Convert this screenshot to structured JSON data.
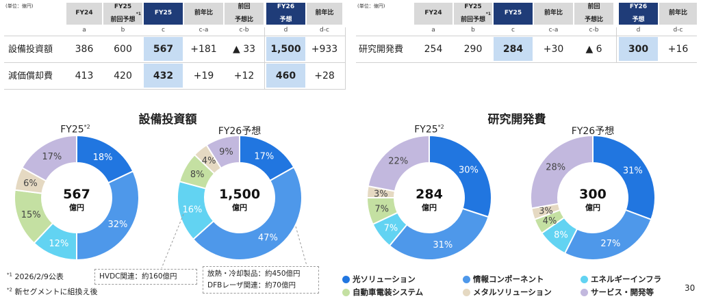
{
  "page_number": "30",
  "unit_label": "(単位：億円)",
  "table_capex": {
    "headers": [
      "FY24",
      "FY25\n前回予想",
      "FY25",
      "前年比",
      "前回\n予想比",
      "FY26\n予想",
      "前年比"
    ],
    "header_sup": "*1",
    "letters": [
      "a",
      "b",
      "c",
      "c-a",
      "c-b",
      "d",
      "d-c"
    ],
    "rows": [
      {
        "label": "設備投資額",
        "values": [
          "386",
          "600",
          "567",
          "+181",
          "▲ 33",
          "1,500",
          "+933"
        ]
      },
      {
        "label": "減価償却費",
        "values": [
          "413",
          "420",
          "432",
          "+19",
          "+12",
          "460",
          "+28"
        ]
      }
    ]
  },
  "table_rd": {
    "headers": [
      "FY24",
      "FY25\n前回予想",
      "FY25",
      "前年比",
      "前回\n予想比",
      "FY26\n予想",
      "前年比"
    ],
    "header_sup": "*1",
    "letters": [
      "a",
      "b",
      "c",
      "c-a",
      "c-b",
      "d",
      "d-c"
    ],
    "rows": [
      {
        "label": "研究開発費",
        "values": [
          "254",
          "290",
          "284",
          "+30",
          "▲ 6",
          "300",
          "+16"
        ]
      }
    ]
  },
  "section_titles": {
    "capex": "設備投資額",
    "rd": "研究開発費"
  },
  "pie_titles": {
    "fy25": "FY25",
    "fy25_sup": "*2",
    "fy26": "FY26予想"
  },
  "center_unit": "億円",
  "colors": {
    "header_dark": "#1f3c78",
    "highlight": "#c6dcf3",
    "光ソリューション": "#2176e0",
    "情報コンポーネント": "#4e98ea",
    "エネルギーインフラ": "#62d3f2",
    "自動車電装システム": "#c4e0a2",
    "メタルソリューション": "#e5d9c2",
    "サービス・開発等": "#c2b8de"
  },
  "chart_data": [
    {
      "type": "pie",
      "title": "設備投資額",
      "subtitle": "FY25",
      "center": "567",
      "labels": [
        "光ソリューション",
        "情報コンポーネント",
        "エネルギーインフラ",
        "自動車電装システム",
        "メタルソリューション",
        "サービス・開発等"
      ],
      "values": [
        18,
        32,
        12,
        15,
        6,
        17
      ]
    },
    {
      "type": "pie",
      "title": "設備投資額",
      "subtitle": "FY26予想",
      "center": "1,500",
      "labels": [
        "光ソリューション",
        "情報コンポーネント",
        "エネルギーインフラ",
        "自動車電装システム",
        "メタルソリューション",
        "サービス・開発等"
      ],
      "values": [
        17,
        47,
        16,
        8,
        4,
        9
      ]
    },
    {
      "type": "pie",
      "title": "研究開発費",
      "subtitle": "FY25",
      "center": "284",
      "labels": [
        "光ソリューション",
        "情報コンポーネント",
        "エネルギーインフラ",
        "自動車電装システム",
        "メタルソリューション",
        "サービス・開発等"
      ],
      "values": [
        30,
        31,
        7,
        7,
        3,
        22
      ]
    },
    {
      "type": "pie",
      "title": "研究開発費",
      "subtitle": "FY26予想",
      "center": "300",
      "labels": [
        "光ソリューション",
        "情報コンポーネント",
        "エネルギーインフラ",
        "自動車電装システム",
        "メタルソリューション",
        "サービス・開発等"
      ],
      "values": [
        31,
        27,
        8,
        4,
        3,
        28
      ]
    }
  ],
  "legend": [
    "光ソリューション",
    "情報コンポーネント",
    "エネルギーインフラ",
    "自動車電装システム",
    "メタルソリューション",
    "サービス・開発等"
  ],
  "notes": [
    {
      "sup": "*1",
      "text": "2026/2/9公表"
    },
    {
      "sup": "*2",
      "text": "新セグメントに組換え後"
    }
  ],
  "callouts": {
    "hvdc": "HVDC関連：約160億円",
    "heat": "放熱・冷却製品：約450億円",
    "dfb": "DFBレーザ関連：約70億円"
  }
}
